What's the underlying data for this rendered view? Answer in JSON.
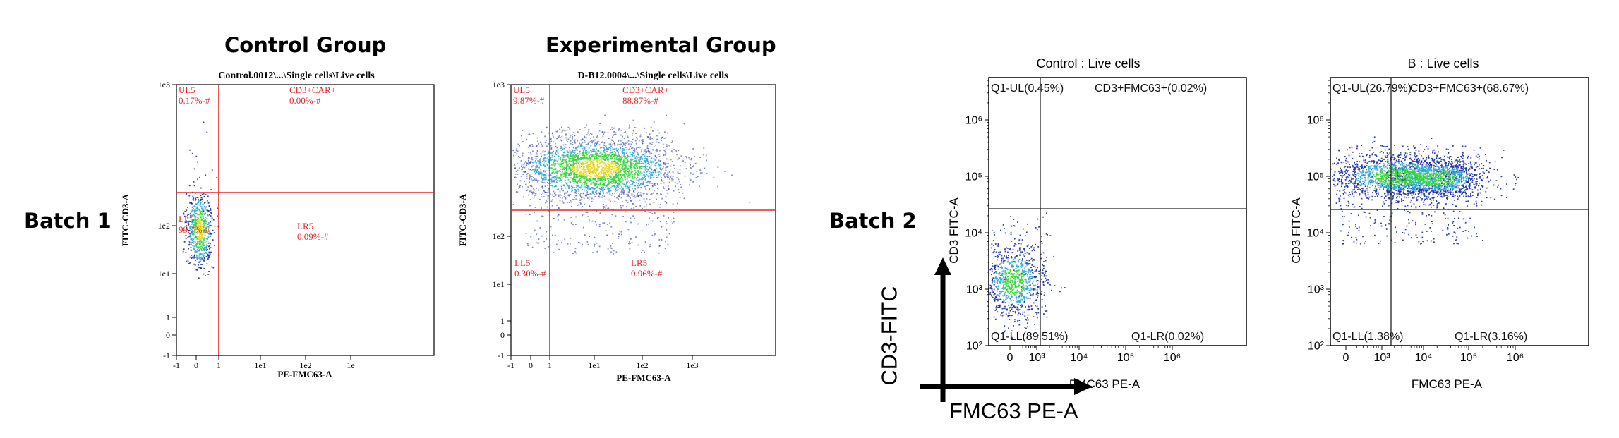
{
  "headers": {
    "control_group": "Control Group",
    "experimental_group": "Experimental Group",
    "batch1": "Batch 1",
    "batch2": "Batch 2"
  },
  "big_axes": {
    "x_label": "FMC63 PE-A",
    "y_label": "CD3-FITC"
  },
  "colors": {
    "gate_batch1": "#e8262a",
    "gate_batch2": "#222222",
    "density_low": "#1b2fa5",
    "density_mid": "#2fa7d8",
    "density_high": "#34d63a",
    "density_peak": "#e8d820"
  },
  "chart_data": [
    {
      "type": "scatter",
      "panel": "batch1-control",
      "title": "Control.0012\\...\\Single cells\\Live cells",
      "xlabel": "PE-FMC63-A",
      "ylabel": "FITC-CD3-A",
      "scale": "biexponential",
      "x_ticks": [
        "-1",
        "0",
        "1",
        "1e1",
        "1e2",
        "1e"
      ],
      "y_ticks": [
        "-1",
        "0",
        "1",
        "1e1",
        "1e2",
        "1e3"
      ],
      "gate": {
        "x": 1.0,
        "y": 5.0
      },
      "quadrants": [
        {
          "position": "top-left",
          "label": "UL5",
          "value": "0.17%-#"
        },
        {
          "position": "top-right",
          "label": "CD3+CAR+",
          "value": "0.00%-#"
        },
        {
          "position": "bottom-left",
          "label": "LL5",
          "value": "99.7%-#"
        },
        {
          "position": "bottom-right",
          "label": "LR5",
          "value": "0.09%-#"
        }
      ]
    },
    {
      "type": "scatter",
      "panel": "batch1-experimental",
      "title": "D-B12.0004\\...\\Single cells\\Live cells",
      "xlabel": "PE-FMC63-A",
      "ylabel": "FITC-CD3-A",
      "scale": "biexponential",
      "x_ticks": [
        "-1",
        "0",
        "1",
        "1e1",
        "1e2",
        "1e3"
      ],
      "y_ticks": [
        "-1",
        "0",
        "1",
        "1e1",
        "1e2",
        "1e3"
      ],
      "gate": {
        "x": 1.0,
        "y": 2.0
      },
      "quadrants": [
        {
          "position": "top-left",
          "label": "UL5",
          "value": "9.87%-#"
        },
        {
          "position": "top-right",
          "label": "CD3+CAR+",
          "value": "88.87%-#"
        },
        {
          "position": "bottom-left",
          "label": "LL5",
          "value": "0.30%-#"
        },
        {
          "position": "bottom-right",
          "label": "LR5",
          "value": "0.96%-#"
        }
      ]
    },
    {
      "type": "scatter",
      "panel": "batch2-control",
      "title": "Control : Live cells",
      "xlabel": "FMC63 PE-A",
      "ylabel": "CD3 FITC-A",
      "scale": "log",
      "x_ticks": [
        "0",
        "10^3",
        "10^4",
        "10^5",
        "10^6"
      ],
      "y_ticks": [
        "10^2",
        "10^3",
        "10^4",
        "10^5",
        "10^6"
      ],
      "gate": {
        "x": 1100,
        "y": 1300
      },
      "quadrants": [
        {
          "position": "top-left",
          "text": "Q1-UL(0.45%)"
        },
        {
          "position": "top-right",
          "text": "CD3+FMC63+(0.02%)"
        },
        {
          "position": "bottom-left",
          "text": "Q1-LL(89.51%)"
        },
        {
          "position": "bottom-right",
          "text": "Q1-LR(0.02%)"
        }
      ]
    },
    {
      "type": "scatter",
      "panel": "batch2-experimental",
      "title": "B : Live cells",
      "xlabel": "FMC63 PE-A",
      "ylabel": "CD3 FITC-A",
      "scale": "log",
      "x_ticks": [
        "0",
        "10^3",
        "10^4",
        "10^5",
        "10^6"
      ],
      "y_ticks": [
        "10^2",
        "10^3",
        "10^4",
        "10^5",
        "10^6"
      ],
      "gate": {
        "x": 2500,
        "y": 1400
      },
      "quadrants": [
        {
          "position": "top-left",
          "text": "Q1-UL(26.79%)"
        },
        {
          "position": "top-right",
          "text": "CD3+FMC63+(68.67%)"
        },
        {
          "position": "bottom-left",
          "text": "Q1-LL(1.38%)"
        },
        {
          "position": "bottom-right",
          "text": "Q1-LR(3.16%)"
        }
      ]
    }
  ]
}
